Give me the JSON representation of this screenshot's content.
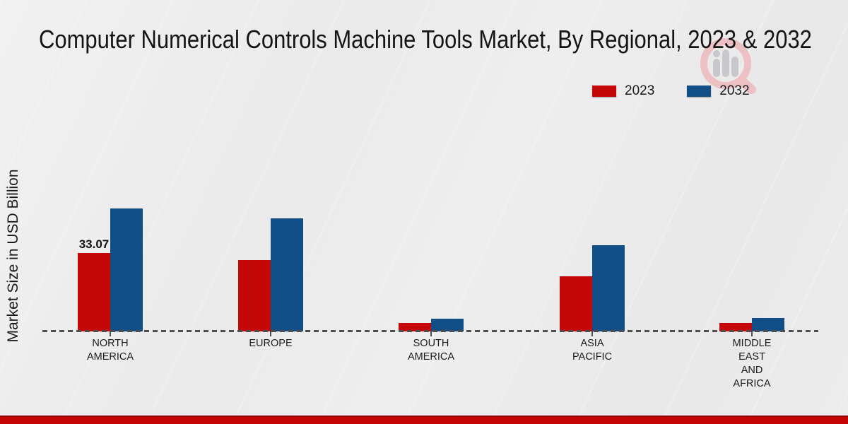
{
  "chart_data": {
    "type": "bar",
    "title": "Computer Numerical Controls Machine Tools Market, By Regional, 2023 & 2032",
    "ylabel": "Market Size in USD Billion",
    "xlabel": "",
    "grid": false,
    "baseline_style": "dashed",
    "legend_position": "top-right",
    "categories": [
      [
        "NORTH",
        "AMERICA"
      ],
      [
        "EUROPE"
      ],
      [
        "SOUTH",
        "AMERICA"
      ],
      [
        "ASIA",
        "PACIFIC"
      ],
      [
        "MIDDLE",
        "EAST",
        "AND",
        "AFRICA"
      ]
    ],
    "series": [
      {
        "name": "2023",
        "color": "#c40707",
        "values": [
          33.07,
          30.1,
          3.7,
          23.3,
          3.7
        ]
      },
      {
        "name": "2032",
        "color": "#114e87",
        "values": [
          51.9,
          47.7,
          5.5,
          36.4,
          5.6
        ]
      }
    ],
    "annotations": [
      {
        "series_index": 0,
        "category_index": 0,
        "text": "33.07"
      }
    ]
  },
  "footer": {
    "accent_color": "#c40404"
  },
  "watermark": {
    "icon": "magnifier-bar-chart-logo",
    "ring_color": "#eebabd",
    "bars_color": "#c3c3c7"
  }
}
